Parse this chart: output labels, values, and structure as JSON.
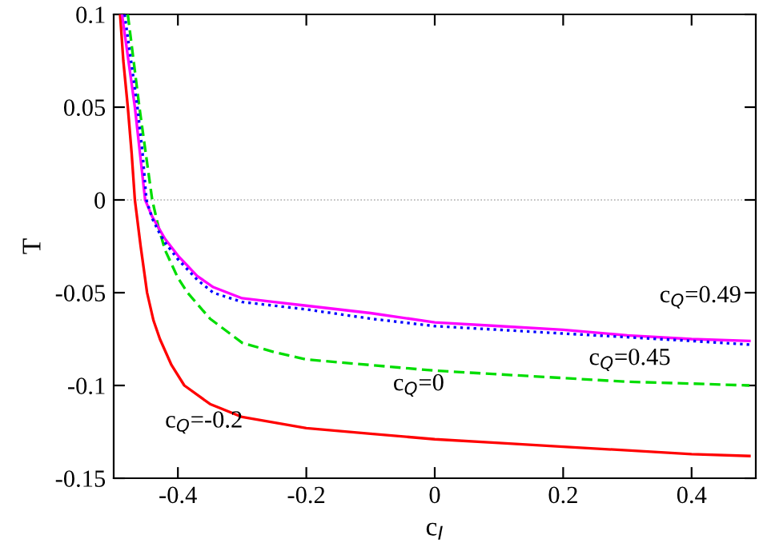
{
  "chart_data": {
    "type": "line",
    "xlabel": "c$_{I}$",
    "ylabel": "T",
    "xlim": [
      -0.5,
      0.5
    ],
    "ylim": [
      -0.15,
      0.1
    ],
    "xticks": [
      -0.4,
      -0.2,
      0,
      0.2,
      0.4
    ],
    "yticks": [
      -0.15,
      -0.1,
      -0.05,
      0,
      0.05,
      0.1
    ],
    "grid": false,
    "legend": false,
    "marker": "none",
    "series": [
      {
        "name": "c$_{Q}$=-0.2",
        "color": "#ff0000",
        "line_style": "solid",
        "x": [
          -0.49,
          -0.485,
          -0.478,
          -0.472,
          -0.467,
          -0.458,
          -0.448,
          -0.438,
          -0.428,
          -0.41,
          -0.39,
          -0.35,
          -0.3,
          -0.25,
          -0.2,
          -0.1,
          0,
          0.1,
          0.2,
          0.3,
          0.4,
          0.49
        ],
        "values": [
          0.1,
          0.075,
          0.05,
          0.025,
          0,
          -0.025,
          -0.05,
          -0.065,
          -0.075,
          -0.089,
          -0.1,
          -0.11,
          -0.117,
          -0.12,
          -0.123,
          -0.126,
          -0.129,
          -0.131,
          -0.133,
          -0.135,
          -0.137,
          -0.138
        ]
      },
      {
        "name": "c$_{Q}$=0",
        "color": "#00dd00",
        "line_style": "dashed",
        "x": [
          -0.478,
          -0.469,
          -0.46,
          -0.45,
          -0.44,
          -0.43,
          -0.42,
          -0.4,
          -0.385,
          -0.35,
          -0.3,
          -0.25,
          -0.2,
          -0.1,
          0,
          0.1,
          0.2,
          0.3,
          0.4,
          0.49
        ],
        "values": [
          0.1,
          0.075,
          0.05,
          0.025,
          0,
          -0.015,
          -0.027,
          -0.042,
          -0.05,
          -0.064,
          -0.077,
          -0.082,
          -0.086,
          -0.089,
          -0.092,
          -0.094,
          -0.096,
          -0.098,
          -0.099,
          -0.1
        ]
      },
      {
        "name": "c$_{Q}$=0.45",
        "color": "#0000ff",
        "line_style": "dotted",
        "x": [
          -0.483,
          -0.473,
          -0.463,
          -0.455,
          -0.449,
          -0.44,
          -0.43,
          -0.42,
          -0.4,
          -0.37,
          -0.345,
          -0.3,
          -0.25,
          -0.2,
          -0.1,
          0,
          0.1,
          0.2,
          0.3,
          0.4,
          0.49
        ],
        "values": [
          0.1,
          0.075,
          0.05,
          0.025,
          0,
          -0.01,
          -0.017,
          -0.023,
          -0.032,
          -0.043,
          -0.05,
          -0.055,
          -0.057,
          -0.059,
          -0.064,
          -0.068,
          -0.07,
          -0.072,
          -0.074,
          -0.076,
          -0.078
        ]
      },
      {
        "name": "c$_{Q}$=0.49",
        "color": "#ff00ff",
        "line_style": "solid",
        "x": [
          -0.487,
          -0.477,
          -0.467,
          -0.459,
          -0.451,
          -0.44,
          -0.43,
          -0.42,
          -0.4,
          -0.37,
          -0.345,
          -0.3,
          -0.25,
          -0.2,
          -0.1,
          0,
          0.1,
          0.2,
          0.3,
          0.4,
          0.49
        ],
        "values": [
          0.1,
          0.075,
          0.05,
          0.025,
          0,
          -0.009,
          -0.015,
          -0.021,
          -0.03,
          -0.041,
          -0.047,
          -0.053,
          -0.055,
          -0.057,
          -0.061,
          -0.066,
          -0.068,
          -0.07,
          -0.073,
          -0.075,
          -0.076
        ]
      }
    ],
    "ref_lines": [
      {
        "axis": "y",
        "value": 0,
        "color": "#aaaaaa",
        "line_style": "dotted"
      }
    ]
  }
}
